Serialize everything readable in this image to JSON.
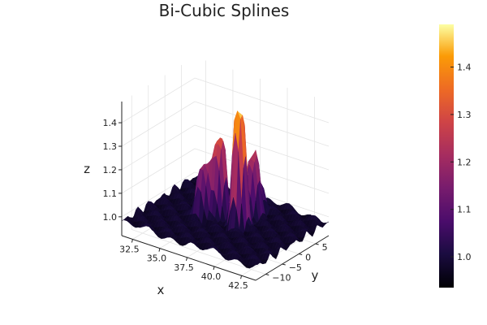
{
  "chart_data": {
    "type": "surface",
    "title": "Bi-Cubic Splines",
    "xlabel": "x",
    "ylabel": "y",
    "zlabel": "z",
    "xlim": [
      31.5,
      43.8
    ],
    "ylim": [
      -13,
      9
    ],
    "zlim": [
      0.92,
      1.49
    ],
    "x_ticks": [
      32.5,
      35.0,
      37.5,
      40.0,
      42.5
    ],
    "x_tick_labels": [
      "32.5",
      "35.0",
      "37.5",
      "40.0",
      "42.5"
    ],
    "y_ticks": [
      -10,
      -5,
      0,
      5
    ],
    "y_tick_labels": [
      "−10",
      "−5",
      "0",
      "5"
    ],
    "z_ticks": [
      1.0,
      1.1,
      1.2,
      1.3,
      1.4
    ],
    "z_tick_labels": [
      "1.0",
      "1.1",
      "1.2",
      "1.3",
      "1.4"
    ],
    "colorbar": {
      "colormap": "inferno",
      "range": [
        0.935,
        1.49
      ],
      "ticks": [
        1.0,
        1.1,
        1.2,
        1.3,
        1.4
      ],
      "tick_labels": [
        "1.0",
        "1.1",
        "1.2",
        "1.3",
        "1.4"
      ]
    },
    "grid": true,
    "surface_peaks": [
      {
        "x": 38.8,
        "y": -1.5,
        "z": 1.47
      },
      {
        "x": 36.8,
        "y": -1.0,
        "z": 1.31
      },
      {
        "x": 38.8,
        "y": 2.5,
        "z": 1.24
      },
      {
        "x": 35.8,
        "y": -2.5,
        "z": 1.2
      },
      {
        "x": 38.5,
        "y": 5.0,
        "z": 1.1
      }
    ]
  }
}
